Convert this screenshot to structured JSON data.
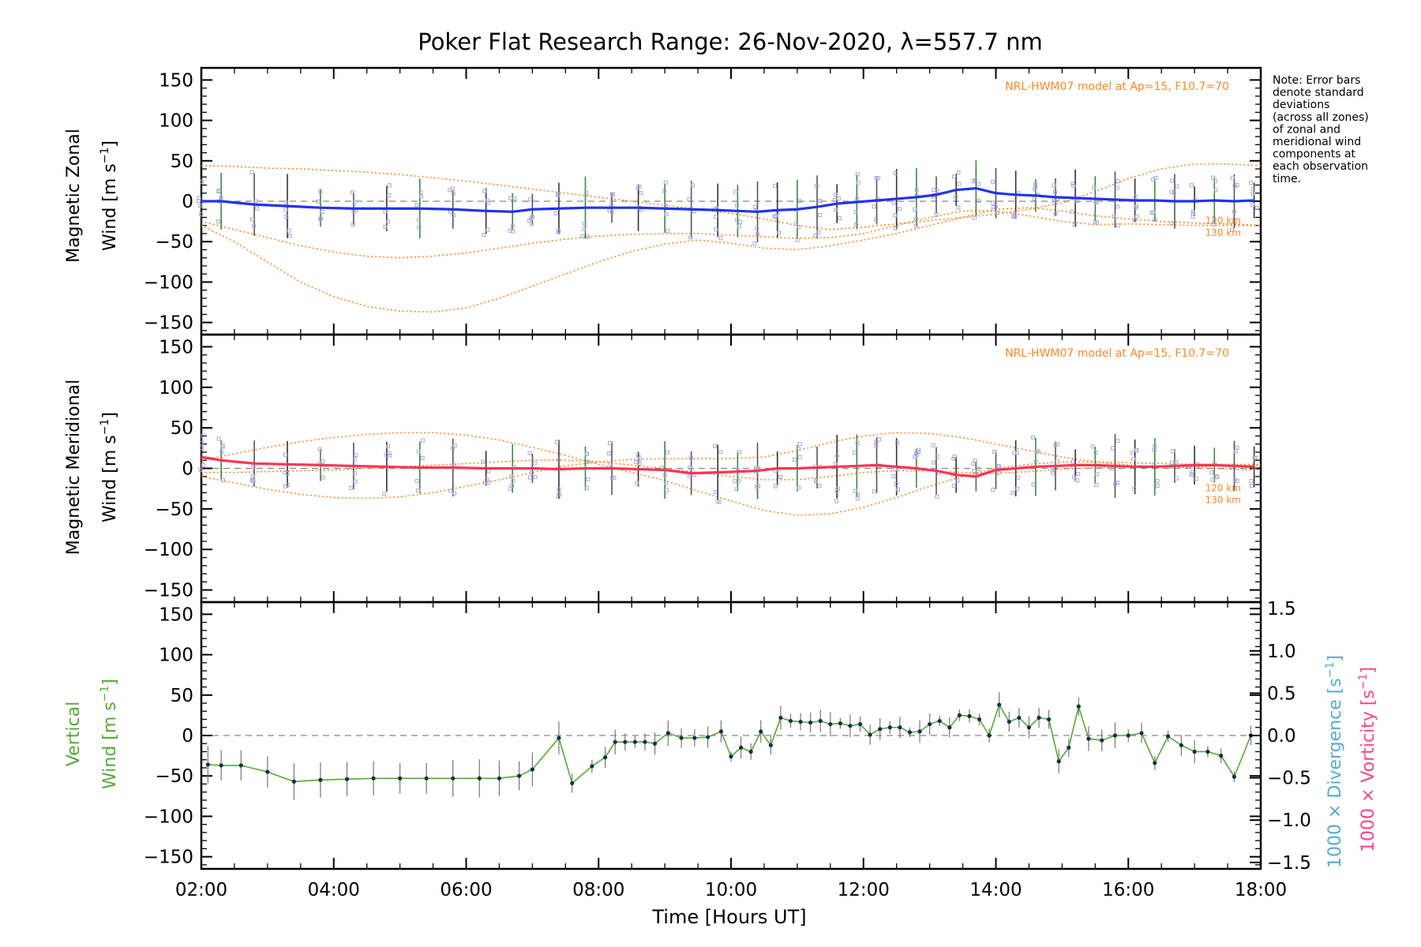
{
  "figure": {
    "title": "Poker Flat Research Range: 26-Nov-2020, λ=557.7 nm",
    "xlabel": "Time [Hours UT]",
    "x_ticks": [
      "02:00",
      "04:00",
      "06:00",
      "08:00",
      "10:00",
      "12:00",
      "14:00",
      "16:00",
      "18:00"
    ],
    "y_ticks": [
      "150",
      "100",
      "50",
      "0",
      "−50",
      "−100",
      "−150"
    ],
    "note": [
      "Note: Error bars",
      "denote standard",
      "deviations",
      "(across all zones)",
      "of zonal and",
      "meridional wind",
      "components at",
      "each observation",
      "time."
    ],
    "model_label": "NRL-HWM07 model at Ap=15, F10.7=70",
    "model_km_labels": [
      "120 km",
      "130 km"
    ],
    "right_axis": {
      "ticks": [
        "1.5",
        "1.0",
        "0.5",
        "0.0",
        "−0.5",
        "−1.0",
        "−1.5"
      ],
      "divergence_label": "1000 × Divergence [s",
      "vorticity_label": "1000 × Vorticity [s",
      "unit_sup": "−1",
      "unit_close": "]"
    }
  },
  "colors": {
    "zonal": "#2233ee",
    "meridional": "#ff3355",
    "vertical": "#55aa33",
    "model": "#ff8822",
    "scatter": "#aaaadd",
    "divergence": "#55aadd",
    "vorticity": "#ff4488"
  },
  "chart_data": [
    {
      "type": "line",
      "panel": "zonal",
      "ylabel_line1": "Magnetic Zonal",
      "ylabel_line2": "Wind [m s",
      "ylabel_sup": "−1",
      "ylabel_close": "]",
      "xlim": [
        2,
        18
      ],
      "ylim": [
        -165,
        165
      ],
      "series": [
        {
          "x": [
            2.0,
            2.3,
            2.8,
            3.3,
            3.8,
            4.3,
            4.8,
            5.3,
            5.8,
            6.3,
            6.7,
            7.0,
            7.4,
            7.8,
            8.2,
            8.6,
            9.0,
            9.4,
            9.8,
            10.1,
            10.4,
            10.7,
            11.0,
            11.3,
            11.6,
            11.9,
            12.2,
            12.5,
            12.8,
            13.1,
            13.4,
            13.7,
            14.0,
            14.3,
            14.6,
            14.9,
            15.2,
            15.5,
            15.8,
            16.1,
            16.4,
            16.7,
            17.0,
            17.3,
            17.6,
            17.9
          ],
          "y": [
            0,
            0,
            -4,
            -6,
            -8,
            -9,
            -9,
            -9,
            -10,
            -12,
            -13,
            -10,
            -9,
            -8,
            -8,
            -8,
            -9,
            -10,
            -11,
            -12,
            -13,
            -11,
            -10,
            -7,
            -3,
            -1,
            1,
            3,
            5,
            8,
            14,
            16,
            10,
            8,
            7,
            5,
            4,
            3,
            2,
            1,
            1,
            0,
            0,
            1,
            0,
            1
          ]
        }
      ],
      "model_curves": [
        {
          "name": "NRL-HWM07",
          "x": [
            2,
            2.5,
            3,
            3.5,
            4,
            4.5,
            5,
            5.5,
            6,
            6.5,
            7,
            7.5,
            8,
            8.5,
            9,
            9.5,
            10,
            10.5,
            11,
            11.5,
            12,
            12.5,
            13,
            13.5,
            14,
            14.5,
            15,
            15.5,
            16,
            16.5,
            17,
            17.5,
            18
          ],
          "y": [
            44,
            43,
            41,
            40,
            38,
            36,
            33,
            29,
            25,
            20,
            15,
            10,
            5,
            0,
            -5,
            -10,
            -15,
            -22,
            -30,
            -35,
            -32,
            -28,
            -24,
            -20,
            -16,
            -10,
            -2,
            12,
            28,
            40,
            46,
            46,
            44
          ]
        },
        {
          "name": "120 km",
          "x": [
            2,
            2.5,
            3,
            3.5,
            4,
            4.5,
            5,
            5.5,
            6,
            6.5,
            7,
            7.5,
            8,
            8.5,
            9,
            9.5,
            10,
            10.5,
            11,
            11.5,
            12,
            12.5,
            13,
            13.5,
            14,
            14.5,
            15,
            15.5,
            16,
            16.5,
            17,
            17.5,
            18
          ],
          "y": [
            -25,
            -35,
            -45,
            -55,
            -63,
            -68,
            -70,
            -68,
            -64,
            -58,
            -52,
            -47,
            -43,
            -41,
            -40,
            -40,
            -42,
            -44,
            -46,
            -45,
            -40,
            -30,
            -20,
            -12,
            -12,
            -18,
            -25,
            -29,
            -28,
            -29,
            -30,
            -30,
            -30
          ]
        },
        {
          "name": "130 km",
          "x": [
            2,
            2.5,
            3,
            3.5,
            4,
            4.5,
            5,
            5.5,
            6,
            6.5,
            7,
            7.5,
            8,
            8.5,
            9,
            9.5,
            10,
            10.5,
            11,
            11.5,
            12,
            12.5,
            13,
            13.5,
            14,
            14.5,
            15,
            15.5,
            16,
            16.5,
            17,
            17.5,
            18
          ],
          "y": [
            -30,
            -50,
            -75,
            -100,
            -118,
            -130,
            -136,
            -137,
            -132,
            -120,
            -105,
            -90,
            -75,
            -62,
            -53,
            -48,
            -52,
            -58,
            -60,
            -55,
            -48,
            -40,
            -30,
            -20,
            -10,
            -8,
            -12,
            -18,
            -22,
            -25,
            -27,
            -28,
            -30
          ]
        }
      ]
    },
    {
      "type": "line",
      "panel": "meridional",
      "ylabel_line1": "Magnetic Meridional",
      "ylabel_line2": "Wind [m s",
      "ylabel_sup": "−1",
      "ylabel_close": "]",
      "xlim": [
        2,
        18
      ],
      "ylim": [
        -165,
        165
      ],
      "series": [
        {
          "x": [
            2.0,
            2.3,
            2.8,
            3.3,
            3.8,
            4.3,
            4.8,
            5.3,
            5.8,
            6.3,
            6.7,
            7.0,
            7.4,
            7.8,
            8.2,
            8.6,
            9.0,
            9.4,
            9.8,
            10.1,
            10.4,
            10.7,
            11.0,
            11.3,
            11.6,
            11.9,
            12.2,
            12.5,
            12.8,
            13.1,
            13.4,
            13.7,
            14.0,
            14.3,
            14.6,
            14.9,
            15.2,
            15.5,
            15.8,
            16.1,
            16.4,
            16.7,
            17.0,
            17.3,
            17.6,
            17.9
          ],
          "y": [
            14,
            10,
            6,
            5,
            4,
            3,
            2,
            1,
            1,
            0,
            0,
            0,
            -1,
            0,
            0,
            -1,
            -2,
            -6,
            -5,
            -4,
            -3,
            0,
            0,
            1,
            2,
            3,
            4,
            2,
            0,
            -3,
            -8,
            -10,
            -2,
            0,
            2,
            3,
            4,
            4,
            3,
            2,
            2,
            3,
            4,
            4,
            3,
            2
          ]
        }
      ],
      "model_curves": [
        {
          "name": "NRL-HWM07",
          "x": [
            2,
            2.5,
            3,
            3.5,
            4,
            4.5,
            5,
            5.5,
            6,
            6.5,
            7,
            7.5,
            8,
            8.5,
            9,
            9.5,
            10,
            10.5,
            11,
            11.5,
            12,
            12.5,
            13,
            13.5,
            14,
            14.5,
            15,
            15.5,
            16,
            16.5,
            17,
            17.5,
            18
          ],
          "y": [
            10,
            18,
            26,
            33,
            38,
            42,
            44,
            44,
            41,
            35,
            26,
            16,
            5,
            -5,
            -15,
            -28,
            -40,
            -52,
            -58,
            -56,
            -48,
            -36,
            -22,
            -10,
            0,
            5,
            8,
            8,
            7,
            6,
            5,
            5,
            5
          ]
        },
        {
          "name": "120 km",
          "x": [
            2,
            2.5,
            3,
            3.5,
            4,
            4.5,
            5,
            5.5,
            6,
            6.5,
            7,
            7.5,
            8,
            8.5,
            9,
            9.5,
            10,
            10.5,
            11,
            11.5,
            12,
            12.5,
            13,
            13.5,
            14,
            14.5,
            15,
            15.5,
            16,
            16.5,
            17,
            17.5,
            18
          ],
          "y": [
            -10,
            -18,
            -26,
            -32,
            -36,
            -37,
            -35,
            -30,
            -22,
            -14,
            -5,
            3,
            8,
            11,
            12,
            12,
            12,
            14,
            22,
            32,
            40,
            44,
            43,
            38,
            30,
            22,
            14,
            8,
            4,
            2,
            2,
            3,
            4
          ]
        },
        {
          "name": "130 km",
          "x": [
            2,
            2.5,
            3,
            3.5,
            4,
            4.5,
            5,
            5.5,
            6,
            6.5,
            7,
            7.5,
            8,
            8.5,
            9,
            9.5,
            10,
            10.5,
            11,
            11.5,
            12,
            12.5,
            13,
            13.5,
            14,
            14.5,
            15,
            15.5,
            16,
            16.5,
            17,
            17.5,
            18
          ],
          "y": [
            -5,
            -5,
            -4,
            -3,
            -2,
            0,
            2,
            4,
            6,
            8,
            10,
            10,
            8,
            4,
            0,
            -5,
            -10,
            -14,
            -14,
            -10,
            -5,
            -3,
            -3,
            -5,
            -6,
            -4,
            -1,
            1,
            2,
            2,
            1,
            -1,
            -2
          ]
        }
      ]
    },
    {
      "type": "line",
      "panel": "vertical",
      "ylabel_line1": "Vertical",
      "ylabel_line2": "Wind [m s",
      "ylabel_sup": "−1",
      "ylabel_close": "]",
      "xlim": [
        2,
        18
      ],
      "ylim": [
        -165,
        165
      ],
      "series": [
        {
          "name": "Vertical",
          "x": [
            2.1,
            2.3,
            2.6,
            3.0,
            3.4,
            3.8,
            4.2,
            4.6,
            5.0,
            5.4,
            5.8,
            6.2,
            6.5,
            6.8,
            7.0,
            7.4,
            7.6,
            7.9,
            8.1,
            8.25,
            8.4,
            8.55,
            8.7,
            8.85,
            9.05,
            9.25,
            9.45,
            9.65,
            9.85,
            10.0,
            10.15,
            10.3,
            10.45,
            10.6,
            10.75,
            10.9,
            11.05,
            11.2,
            11.35,
            11.5,
            11.65,
            11.8,
            11.95,
            12.1,
            12.25,
            12.4,
            12.55,
            12.7,
            12.85,
            13.0,
            13.15,
            13.3,
            13.45,
            13.6,
            13.75,
            13.9,
            14.05,
            14.2,
            14.35,
            14.5,
            14.65,
            14.8,
            14.95,
            15.1,
            15.25,
            15.4,
            15.6,
            15.8,
            16.0,
            16.2,
            16.4,
            16.6,
            16.8,
            17.0,
            17.2,
            17.4,
            17.6,
            17.85
          ],
          "y": [
            -36,
            -37,
            -37,
            -45,
            -57,
            -55,
            -54,
            -53,
            -53,
            -53,
            -53,
            -53,
            -53,
            -50,
            -42,
            -3,
            -59,
            -38,
            -27,
            -8,
            -8,
            -8,
            -8,
            -10,
            3,
            -3,
            -3,
            -2,
            5,
            -26,
            -15,
            -20,
            5,
            -12,
            22,
            18,
            17,
            16,
            18,
            14,
            15,
            12,
            14,
            1,
            8,
            10,
            10,
            4,
            5,
            14,
            18,
            10,
            25,
            24,
            20,
            0,
            38,
            17,
            22,
            10,
            22,
            20,
            -32,
            -15,
            36,
            -4,
            -6,
            0,
            0,
            3,
            -34,
            -1,
            -12,
            -20,
            -20,
            -25,
            -51,
            0
          ]
        }
      ]
    }
  ]
}
